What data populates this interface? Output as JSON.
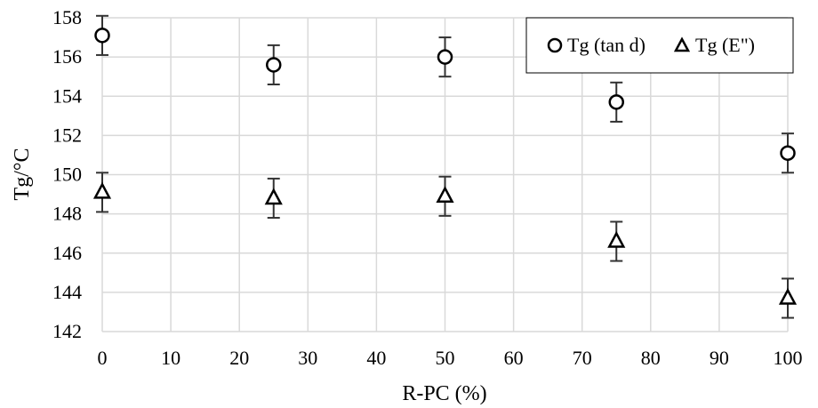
{
  "chart_data": {
    "type": "scatter",
    "xlabel": "R-PC (%)",
    "ylabel": "Tg/°C",
    "xlim": [
      0,
      100
    ],
    "ylim": [
      142,
      158
    ],
    "x_ticks": [
      0,
      10,
      20,
      30,
      40,
      50,
      60,
      70,
      80,
      90,
      100
    ],
    "y_ticks": [
      142,
      144,
      146,
      148,
      150,
      152,
      154,
      156,
      158
    ],
    "grid": true,
    "legend_position": "top-right",
    "series": [
      {
        "name": "Tg (tan d)",
        "marker": "circle",
        "x": [
          0,
          25,
          50,
          75,
          100
        ],
        "y": [
          157.1,
          155.6,
          156.0,
          153.7,
          151.1
        ],
        "error": [
          1.0,
          1.0,
          1.0,
          1.0,
          1.0
        ]
      },
      {
        "name": "Tg (E\")",
        "marker": "triangle",
        "x": [
          0,
          25,
          50,
          75,
          100
        ],
        "y": [
          149.1,
          148.8,
          148.9,
          146.6,
          143.7
        ],
        "error": [
          1.0,
          1.0,
          1.0,
          1.0,
          1.0
        ]
      }
    ]
  }
}
